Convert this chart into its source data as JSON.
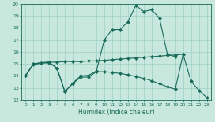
{
  "xlabel": "Humidex (Indice chaleur)",
  "bg_color": "#c8e8de",
  "grid_color": "#9ecfc7",
  "line_color": "#1a6b5a",
  "x_values": [
    0,
    1,
    2,
    3,
    4,
    5,
    6,
    7,
    8,
    9,
    10,
    11,
    12,
    13,
    14,
    15,
    16,
    17,
    18,
    19,
    20,
    21,
    22,
    23
  ],
  "line1": [
    14.0,
    15.0,
    15.1,
    15.15,
    15.15,
    15.2,
    15.2,
    15.2,
    15.25,
    15.25,
    15.3,
    15.35,
    15.4,
    15.45,
    15.5,
    15.55,
    15.6,
    15.65,
    15.7,
    15.75,
    15.8,
    null,
    null,
    null
  ],
  "line2": [
    14.0,
    15.0,
    15.1,
    15.15,
    14.65,
    12.7,
    13.4,
    14.0,
    14.05,
    14.4,
    17.0,
    17.85,
    17.85,
    18.5,
    19.85,
    19.35,
    19.5,
    18.8,
    15.8,
    15.6,
    null,
    null,
    null,
    null
  ],
  "line3": [
    14.0,
    14.95,
    15.05,
    15.1,
    14.65,
    12.7,
    13.35,
    13.9,
    13.9,
    14.35,
    14.35,
    14.3,
    14.2,
    14.1,
    13.95,
    13.8,
    13.6,
    13.35,
    13.1,
    12.9,
    15.8,
    13.55,
    12.8,
    12.2
  ],
  "ylim": [
    12,
    20
  ],
  "xlim": [
    -0.5,
    23.5
  ],
  "yticks": [
    12,
    13,
    14,
    15,
    16,
    17,
    18,
    19,
    20
  ],
  "xticks": [
    0,
    1,
    2,
    3,
    4,
    5,
    6,
    7,
    8,
    9,
    10,
    11,
    12,
    13,
    14,
    15,
    16,
    17,
    18,
    19,
    20,
    21,
    22,
    23
  ]
}
